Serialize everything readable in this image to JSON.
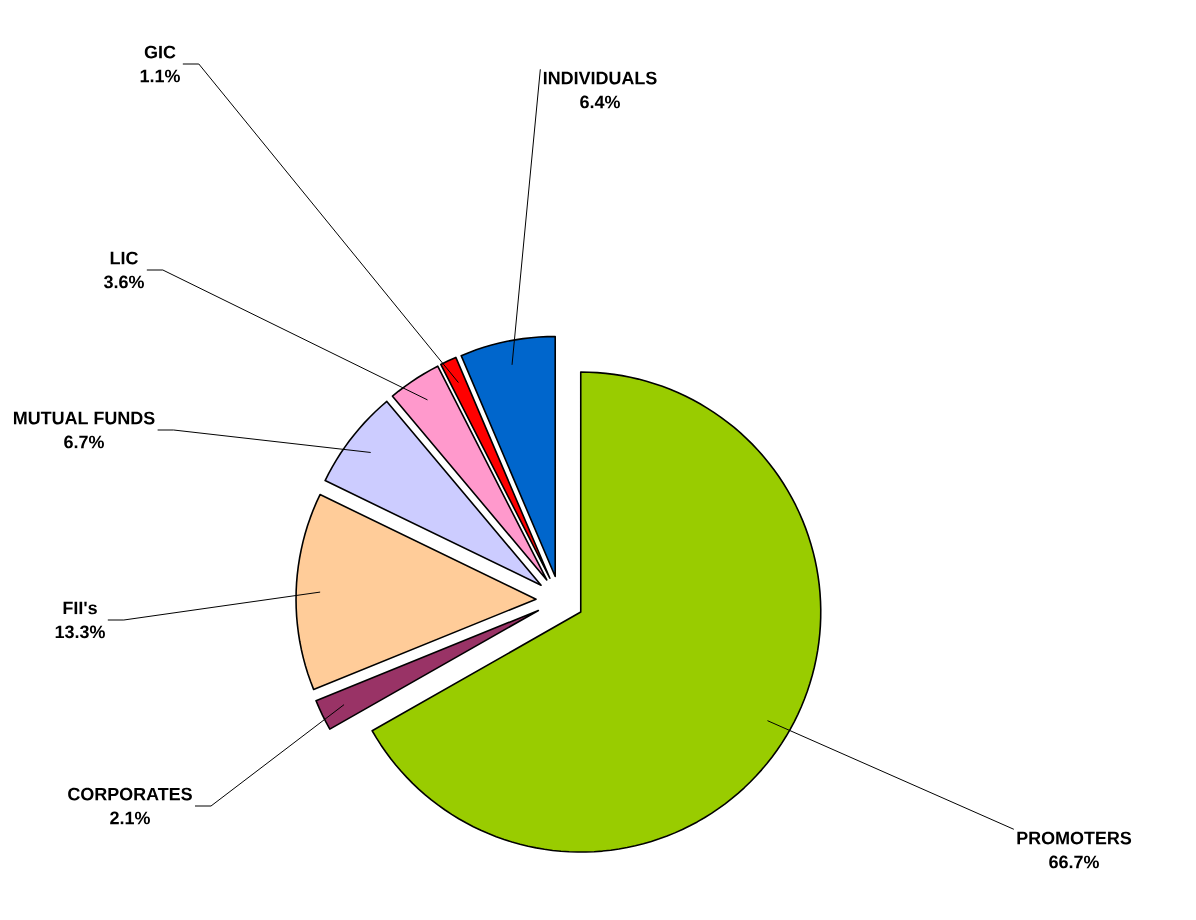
{
  "chart_data": {
    "type": "pie",
    "categories": [
      "PROMOTERS",
      "CORPORATES",
      "FII's",
      "MUTUAL FUNDS",
      "LIC",
      "GIC",
      "INDIVIDUALS"
    ],
    "values": [
      66.7,
      2.1,
      13.3,
      6.7,
      3.6,
      1.1,
      6.4
    ],
    "value_labels": [
      "66.7%",
      "2.1%",
      "13.3%",
      "6.7%",
      "3.6%",
      "1.1%",
      "6.4%"
    ],
    "colors": [
      "#99cc00",
      "#993366",
      "#ffcc99",
      "#ccccff",
      "#ff99cc",
      "#ff0000",
      "#0066cc"
    ],
    "legend": false
  }
}
